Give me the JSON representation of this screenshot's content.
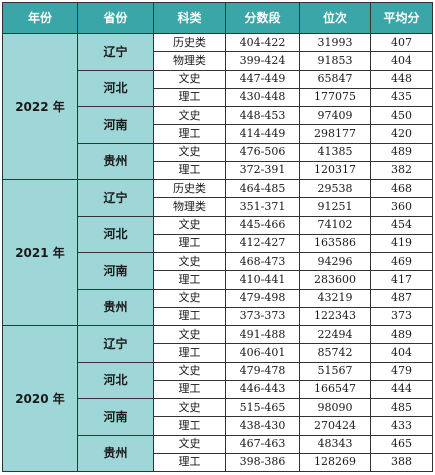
{
  "headers": [
    "年份",
    "省份",
    "科类",
    "分数段",
    "位次",
    "平均分"
  ],
  "years": [
    {
      "year": "2022 年",
      "provinces": [
        {
          "name": "辽宁",
          "rows": [
            {
              "category": "历史类",
              "score_range": "404-422",
              "rank": "31993",
              "average": "407"
            },
            {
              "category": "物理类",
              "score_range": "399-424",
              "rank": "91853",
              "average": "404"
            }
          ]
        },
        {
          "name": "河北",
          "rows": [
            {
              "category": "文史",
              "score_range": "447-449",
              "rank": "65847",
              "average": "448"
            },
            {
              "category": "理工",
              "score_range": "430-448",
              "rank": "177075",
              "average": "435"
            }
          ]
        },
        {
          "name": "河南",
          "rows": [
            {
              "category": "文史",
              "score_range": "448-453",
              "rank": "97409",
              "average": "450"
            },
            {
              "category": "理工",
              "score_range": "414-449",
              "rank": "298177",
              "average": "420"
            }
          ]
        },
        {
          "name": "贵州",
          "rows": [
            {
              "category": "文史",
              "score_range": "476-506",
              "rank": "41385",
              "average": "489"
            },
            {
              "category": "理工",
              "score_range": "372-391",
              "rank": "120317",
              "average": "382"
            }
          ]
        }
      ]
    },
    {
      "year": "2021 年",
      "provinces": [
        {
          "name": "辽宁",
          "rows": [
            {
              "category": "历史类",
              "score_range": "464-485",
              "rank": "29538",
              "average": "468"
            },
            {
              "category": "物理类",
              "score_range": "351-371",
              "rank": "91251",
              "average": "360"
            }
          ]
        },
        {
          "name": "河北",
          "rows": [
            {
              "category": "文史",
              "score_range": "445-466",
              "rank": "74102",
              "average": "454"
            },
            {
              "category": "理工",
              "score_range": "412-427",
              "rank": "163586",
              "average": "419"
            }
          ]
        },
        {
          "name": "河南",
          "rows": [
            {
              "category": "文史",
              "score_range": "468-473",
              "rank": "94296",
              "average": "469"
            },
            {
              "category": "理工",
              "score_range": "410-441",
              "rank": "283600",
              "average": "417"
            }
          ]
        },
        {
          "name": "贵州",
          "rows": [
            {
              "category": "文史",
              "score_range": "479-498",
              "rank": "43219",
              "average": "487"
            },
            {
              "category": "理工",
              "score_range": "373-373",
              "rank": "122343",
              "average": "373"
            }
          ]
        }
      ]
    },
    {
      "year": "2020 年",
      "provinces": [
        {
          "name": "辽宁",
          "rows": [
            {
              "category": "文史",
              "score_range": "491-488",
              "rank": "22494",
              "average": "489"
            },
            {
              "category": "理工",
              "score_range": "406-401",
              "rank": "85742",
              "average": "404"
            }
          ]
        },
        {
          "name": "河北",
          "rows": [
            {
              "category": "文史",
              "score_range": "479-478",
              "rank": "51567",
              "average": "479"
            },
            {
              "category": "理工",
              "score_range": "446-443",
              "rank": "166547",
              "average": "444"
            }
          ]
        },
        {
          "name": "河南",
          "rows": [
            {
              "category": "文史",
              "score_range": "515-465",
              "rank": "98090",
              "average": "485"
            },
            {
              "category": "理工",
              "score_range": "438-430",
              "rank": "270424",
              "average": "433"
            }
          ]
        },
        {
          "name": "贵州",
          "rows": [
            {
              "category": "文史",
              "score_range": "467-463",
              "rank": "48343",
              "average": "465"
            },
            {
              "category": "理工",
              "score_range": "398-386",
              "rank": "128269",
              "average": "388"
            }
          ]
        }
      ]
    }
  ]
}
